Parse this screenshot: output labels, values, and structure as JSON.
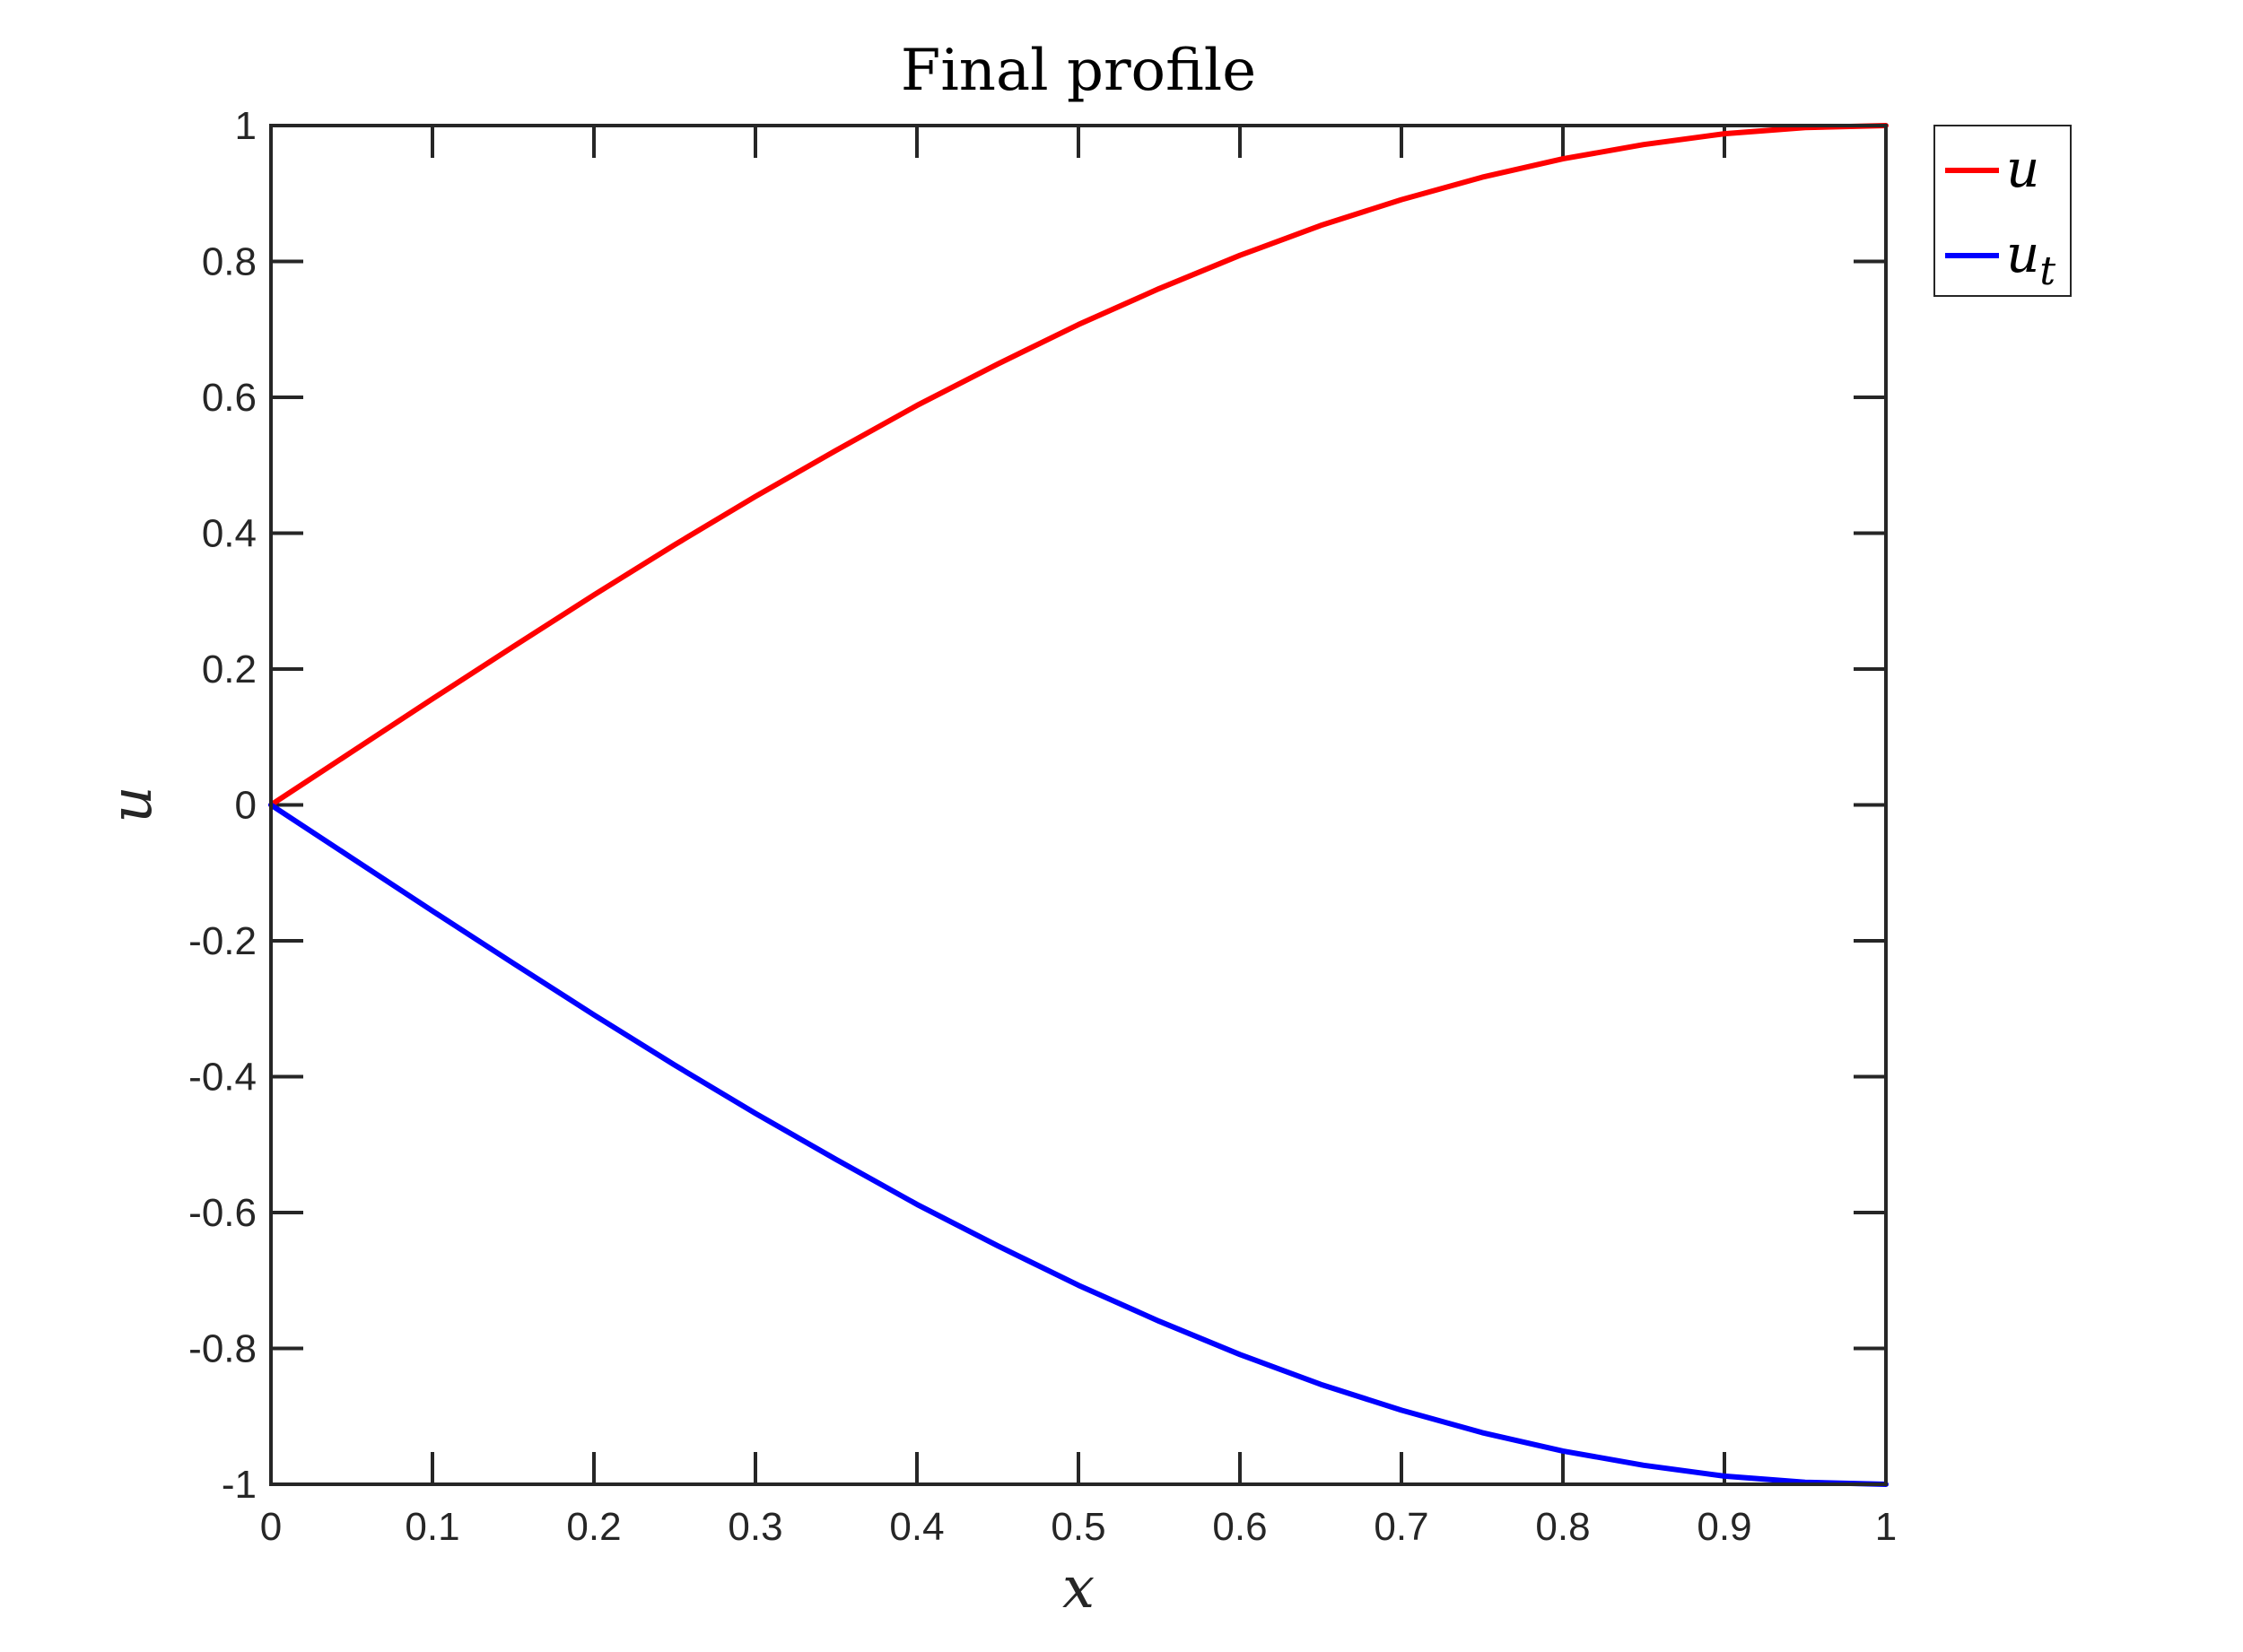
{
  "chart_data": {
    "type": "line",
    "title": "Final profile",
    "xlabel": "x",
    "ylabel": "u",
    "xlim": [
      0,
      1
    ],
    "ylim": [
      -1,
      1
    ],
    "xticks": [
      0,
      0.1,
      0.2,
      0.3,
      0.4,
      0.5,
      0.6,
      0.7,
      0.8,
      0.9,
      1
    ],
    "xtick_labels": [
      "0",
      "0.1",
      "0.2",
      "0.3",
      "0.4",
      "0.5",
      "0.6",
      "0.7",
      "0.8",
      "0.9",
      "1"
    ],
    "yticks": [
      -1,
      -0.8,
      -0.6,
      -0.4,
      -0.2,
      0,
      0.2,
      0.4,
      0.6,
      0.8,
      1
    ],
    "ytick_labels": [
      "-1",
      "-0.8",
      "-0.6",
      "-0.4",
      "-0.2",
      "0",
      "0.2",
      "0.4",
      "0.6",
      "0.8",
      "1"
    ],
    "grid": false,
    "legend_position": "outside-top-right",
    "x": [
      0,
      0.05,
      0.1,
      0.15,
      0.2,
      0.25,
      0.3,
      0.35,
      0.4,
      0.45,
      0.5,
      0.55,
      0.6,
      0.65,
      0.7,
      0.75,
      0.8,
      0.85,
      0.9,
      0.95,
      1
    ],
    "series": [
      {
        "name": "u",
        "color": "#ff0000",
        "values": [
          0,
          0.078,
          0.156,
          0.233,
          0.309,
          0.383,
          0.454,
          0.522,
          0.588,
          0.649,
          0.707,
          0.76,
          0.809,
          0.853,
          0.891,
          0.924,
          0.951,
          0.972,
          0.988,
          0.997,
          1.0
        ]
      },
      {
        "name": "u_t",
        "color": "#0000ff",
        "values": [
          0,
          -0.078,
          -0.156,
          -0.233,
          -0.309,
          -0.383,
          -0.454,
          -0.522,
          -0.588,
          -0.649,
          -0.707,
          -0.76,
          -0.809,
          -0.853,
          -0.891,
          -0.924,
          -0.951,
          -0.972,
          -0.988,
          -0.997,
          -1.0
        ]
      }
    ],
    "legend": [
      {
        "base": "u",
        "sub": "",
        "color": "#ff0000"
      },
      {
        "base": "u",
        "sub": "t",
        "color": "#0000ff"
      }
    ]
  }
}
